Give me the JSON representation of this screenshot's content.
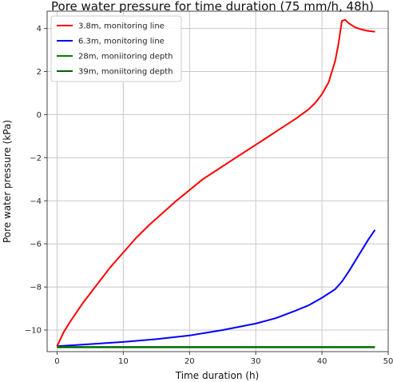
{
  "chart_data": {
    "type": "line",
    "title": "Pore water pressure for time duration (75 mm/h, 48h)",
    "xlabel": "Time duration (h)",
    "ylabel": "Pore water pressure (kPa)",
    "xlim": [
      -1.5,
      50
    ],
    "ylim": [
      -11,
      4.8
    ],
    "xticks": [
      0,
      10,
      20,
      30,
      40,
      50
    ],
    "xtick_labels": [
      "0",
      "10",
      "20",
      "30",
      "40",
      "50"
    ],
    "yticks": [
      -10,
      -8,
      -6,
      -4,
      -2,
      0,
      2,
      4
    ],
    "ytick_labels": [
      "−10",
      "−8",
      "−6",
      "−4",
      "−2",
      "0",
      "2",
      "4"
    ],
    "grid": true,
    "legend_position": "top-left",
    "series": [
      {
        "name": "3.8m, monitoring line",
        "color": "#ff0000",
        "x": [
          0,
          1,
          2,
          3,
          4,
          6,
          8,
          10,
          12,
          14,
          16,
          18,
          20,
          22,
          24,
          26,
          28,
          30,
          32,
          34,
          36,
          38,
          39,
          40,
          41,
          42,
          42.5,
          43,
          43.5,
          44,
          45,
          46,
          47,
          48
        ],
        "y": [
          -10.75,
          -10.1,
          -9.6,
          -9.15,
          -8.7,
          -7.9,
          -7.1,
          -6.4,
          -5.7,
          -5.1,
          -4.55,
          -4.0,
          -3.5,
          -3.0,
          -2.6,
          -2.2,
          -1.8,
          -1.4,
          -1.0,
          -0.6,
          -0.2,
          0.25,
          0.55,
          0.95,
          1.5,
          2.5,
          3.3,
          4.35,
          4.4,
          4.25,
          4.05,
          3.95,
          3.88,
          3.85
        ]
      },
      {
        "name": "6.3m, monitoring line",
        "color": "#0000ff",
        "x": [
          0,
          5,
          10,
          15,
          20,
          25,
          30,
          33,
          36,
          38,
          40,
          42,
          43,
          44,
          45,
          46,
          47,
          48
        ],
        "y": [
          -10.75,
          -10.65,
          -10.55,
          -10.42,
          -10.25,
          -10.0,
          -9.7,
          -9.45,
          -9.1,
          -8.85,
          -8.5,
          -8.1,
          -7.75,
          -7.3,
          -6.8,
          -6.3,
          -5.8,
          -5.35
        ]
      },
      {
        "name": "28m, moniitoring depth",
        "color": "#008000",
        "x": [
          0,
          48
        ],
        "y": [
          -10.78,
          -10.78
        ]
      },
      {
        "name": "39m, moniitoring depth",
        "color": "#006400",
        "x": [
          0,
          48
        ],
        "y": [
          -10.8,
          -10.8
        ]
      }
    ]
  }
}
